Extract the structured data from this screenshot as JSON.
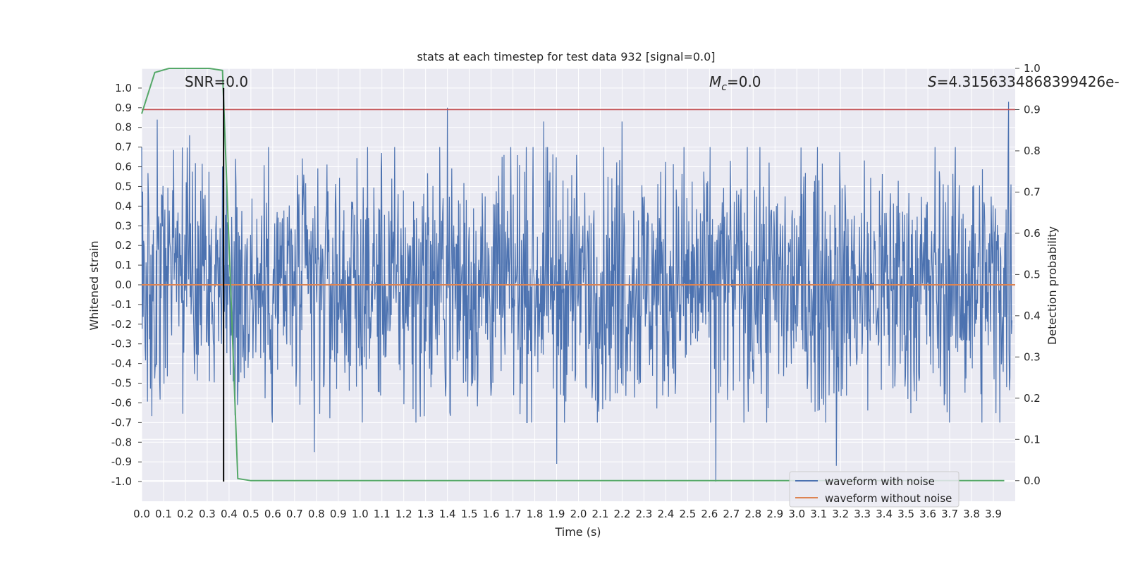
{
  "chart_data": {
    "type": "line",
    "title": "stats at each timestep for test data 932 [signal=0.0]",
    "xlabel": "Time (s)",
    "ylabel": "Whitened strain",
    "y2label": "Detection probability",
    "xlim": [
      0.0,
      4.0
    ],
    "ylim": [
      -1.1,
      1.1
    ],
    "y2lim": [
      -0.05,
      1.0
    ],
    "x_ticks": [
      "0.0",
      "0.1",
      "0.2",
      "0.3",
      "0.4",
      "0.5",
      "0.6",
      "0.7",
      "0.8",
      "0.9",
      "1.0",
      "1.1",
      "1.2",
      "1.3",
      "1.4",
      "1.5",
      "1.6",
      "1.7",
      "1.8",
      "1.9",
      "2.0",
      "2.1",
      "2.2",
      "2.3",
      "2.4",
      "2.5",
      "2.6",
      "2.7",
      "2.8",
      "2.9",
      "3.0",
      "3.1",
      "3.2",
      "3.3",
      "3.4",
      "3.5",
      "3.6",
      "3.7",
      "3.8",
      "3.9"
    ],
    "y_ticks": [
      "1.0",
      "0.9",
      "0.8",
      "0.7",
      "0.6",
      "0.5",
      "0.4",
      "0.3",
      "0.2",
      "0.1",
      "0.0",
      "-0.1",
      "-0.2",
      "-0.3",
      "-0.4",
      "-0.5",
      "-0.6",
      "-0.7",
      "-0.8",
      "-0.9",
      "-1.0"
    ],
    "y2_ticks": [
      "1.0",
      "0.9",
      "0.8",
      "0.7",
      "0.6",
      "0.5",
      "0.4",
      "0.3",
      "0.2",
      "0.1",
      "0.0"
    ],
    "grid": true,
    "legend_position": "bottom-right",
    "annotations": {
      "snr": "SNR=0.0",
      "mc_symbol": "M",
      "mc_sub": "c",
      "mc_value": "=0.0",
      "s_symbol": "S",
      "s_value": "=4.3156334868399426e-"
    },
    "series": [
      {
        "name": "waveform with noise",
        "color": "#4c72b0",
        "description_values": "dense noisy signal, amplitude mostly within ±0.45 with spikes to about ±0.9",
        "peaks": [
          {
            "x": 0.07,
            "y": 0.84
          },
          {
            "x": 0.22,
            "y": 0.76
          },
          {
            "x": 1.4,
            "y": 0.9
          },
          {
            "x": 1.84,
            "y": 0.83
          },
          {
            "x": 2.2,
            "y": 0.83
          },
          {
            "x": 2.63,
            "y": 0.82
          },
          {
            "x": 3.97,
            "y": 0.93
          },
          {
            "x": 0.79,
            "y": -0.85
          },
          {
            "x": 1.9,
            "y": -0.91
          },
          {
            "x": 2.63,
            "y": -1.0
          },
          {
            "x": 3.18,
            "y": -0.92
          }
        ]
      },
      {
        "name": "waveform without noise",
        "color": "#dd8452",
        "x": [
          0.0,
          4.0
        ],
        "y": [
          0.0,
          0.0
        ]
      },
      {
        "name": "detection probability",
        "color": "#55a868",
        "axis": "right",
        "x": [
          0.0,
          0.06,
          0.125,
          0.19,
          0.25,
          0.31,
          0.37,
          0.44,
          0.5,
          0.56,
          0.62,
          3.95
        ],
        "y": [
          0.89,
          0.99,
          1.0,
          1.0,
          1.0,
          1.0,
          0.995,
          0.005,
          0.0,
          0.0,
          0.0,
          0.0
        ]
      }
    ],
    "threshold_line": {
      "axis": "right",
      "y": 0.9,
      "color": "#c44e52"
    },
    "vertical_line": {
      "x": 0.375,
      "y_range": [
        -1.0,
        1.0
      ],
      "color": "#000000"
    }
  },
  "legend": {
    "items": [
      {
        "label": "waveform with noise",
        "color": "#4c72b0"
      },
      {
        "label": "waveform without noise",
        "color": "#dd8452"
      }
    ]
  },
  "colors": {
    "plot_bg": "#eaeaf2",
    "grid": "#ffffff",
    "noise": "#4c72b0",
    "clean": "#dd8452",
    "prob": "#55a868",
    "threshold": "#c44e52"
  }
}
